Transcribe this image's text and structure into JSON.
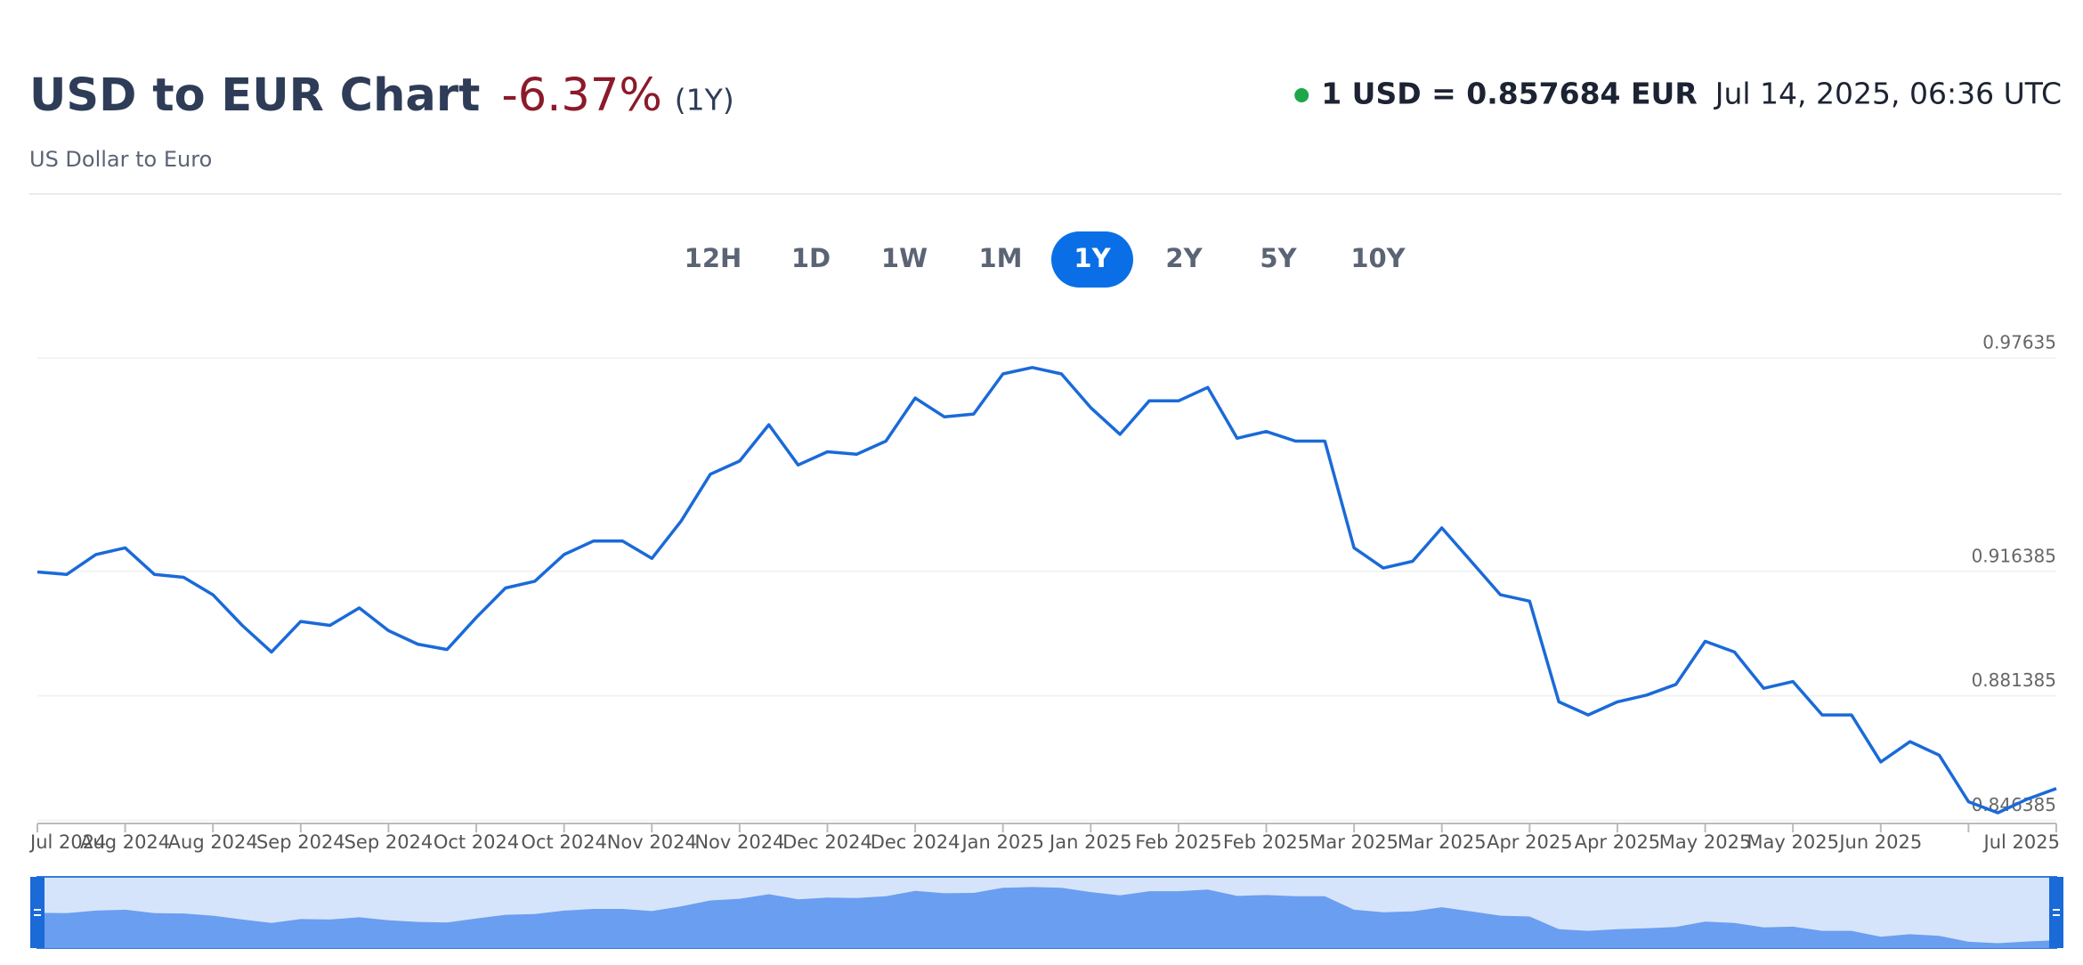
{
  "chart_data": {
    "type": "line",
    "title": "USD to EUR Chart",
    "change": "-6.37%",
    "period": "(1Y)",
    "subtitle": "US Dollar to Euro",
    "quote": "1 USD = 0.857684 EUR",
    "timestamp": "Jul 14, 2025, 06:36 UTC",
    "ranges": [
      "12H",
      "1D",
      "1W",
      "1M",
      "1Y",
      "2Y",
      "5Y",
      "10Y"
    ],
    "active_range": 4,
    "categories": [
      "Jul 2024",
      null,
      null,
      "Aug 2024",
      null,
      null,
      "Aug 2024",
      null,
      null,
      "Sep 2024",
      null,
      null,
      "Sep 2024",
      null,
      null,
      "Oct 2024",
      null,
      null,
      "Oct 2024",
      null,
      null,
      "Nov 2024",
      null,
      null,
      "Nov 2024",
      null,
      null,
      "Dec 2024",
      null,
      null,
      "Dec 2024",
      null,
      null,
      "Jan 2025",
      null,
      null,
      "Jan 2025",
      null,
      null,
      "Feb 2025",
      null,
      null,
      "Feb 2025",
      null,
      null,
      "Mar 2025",
      null,
      null,
      "Mar 2025",
      null,
      null,
      "Apr 2025",
      null,
      null,
      "Apr 2025",
      null,
      null,
      "May 2025",
      null,
      null,
      "May 2025",
      null,
      null,
      "Jun 2025",
      null,
      null,
      null,
      null,
      null,
      "Jul 2025"
    ],
    "series": [
      {
        "name": "USD/EUR",
        "color": "#1a6ad8",
        "values": [
          0.9162,
          0.9155,
          0.9211,
          0.923,
          0.9155,
          0.9147,
          0.9098,
          0.9012,
          0.8937,
          0.9023,
          0.9012,
          0.9061,
          0.8997,
          0.8959,
          0.8944,
          0.9034,
          0.9117,
          0.9136,
          0.9211,
          0.9249,
          0.9249,
          0.92,
          0.9305,
          0.9437,
          0.9474,
          0.9576,
          0.9463,
          0.95,
          0.9493,
          0.953,
          0.9651,
          0.9598,
          0.9606,
          0.9719,
          0.9737,
          0.9719,
          0.9624,
          0.9549,
          0.9643,
          0.9643,
          0.9681,
          0.9538,
          0.9557,
          0.953,
          0.953,
          0.923,
          0.9173,
          0.9192,
          0.9286,
          0.9192,
          0.9098,
          0.908,
          0.8797,
          0.876,
          0.8797,
          0.8816,
          0.8846,
          0.8967,
          0.8937,
          0.8835,
          0.8854,
          0.876,
          0.876,
          0.8628,
          0.8685,
          0.8647,
          0.8516,
          0.8485,
          0.8523,
          0.8553
        ]
      }
    ],
    "ylim": [
      0.8455,
      0.9764
    ],
    "yticks": [
      0.846385,
      0.881385,
      0.916385,
      0.97635
    ],
    "grid": true
  }
}
